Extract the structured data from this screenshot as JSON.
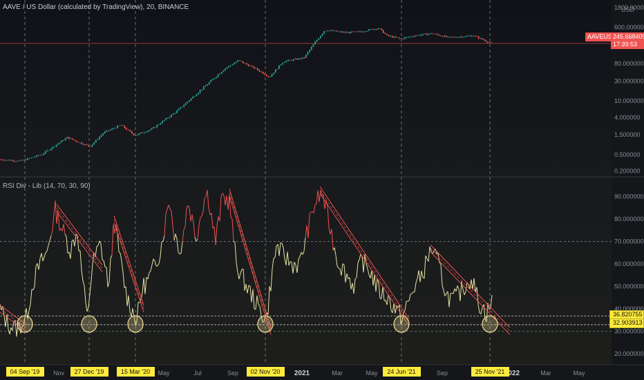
{
  "chart_title": "AAVE / US Dollar (calculated by TradingView), 20, BINANCE",
  "indicator_title": "RSI Div - Lib (14, 70, 30, 90)",
  "currency": "USD",
  "price_badge": {
    "symbol": "AAVEUSD",
    "value": "245.668409",
    "countdown": "17:39:53",
    "color": "#ef5350"
  },
  "colors": {
    "background": "#131722",
    "price_up": "#26a69a",
    "price_down": "#ef5350",
    "rsi_line": "#e8e4a5",
    "rsi_overbought": "#ef5350",
    "trendline": "#ef5350",
    "marker": "#f5e39b",
    "date_label_bg": "#ffeb3b"
  },
  "rsi_levels": {
    "upper": 70,
    "lower": 30,
    "overbought": 90,
    "support_1": 36.820755,
    "support_2": 32.903913
  },
  "rsi_badges": [
    "36.820755",
    "32.903913"
  ],
  "chart_data": [
    {
      "type": "candlestick",
      "y_scale": "log",
      "y_ticks": [
        "1800.000000",
        "600.000000",
        "200.000000",
        "80.000000",
        "30.000000",
        "10.000000",
        "4.000000",
        "1.500000",
        "0.500000",
        "0.200000"
      ],
      "y_tick_values": [
        1800,
        600,
        200,
        80,
        30,
        10,
        4,
        1.5,
        0.5,
        0.2
      ],
      "ylim": [
        0.15,
        2200
      ],
      "current_price": 245.668409,
      "approx_closes": [
        [
          0,
          0.38
        ],
        [
          30,
          0.35
        ],
        [
          60,
          0.5
        ],
        [
          97,
          1.3
        ],
        [
          130,
          0.78
        ],
        [
          150,
          1.7
        ],
        [
          175,
          2.6
        ],
        [
          195,
          1.45
        ],
        [
          220,
          2.1
        ],
        [
          255,
          5.5
        ],
        [
          290,
          18
        ],
        [
          325,
          60
        ],
        [
          345,
          95
        ],
        [
          370,
          60
        ],
        [
          390,
          38
        ],
        [
          410,
          90
        ],
        [
          440,
          110
        ],
        [
          455,
          250
        ],
        [
          470,
          520
        ],
        [
          500,
          450
        ],
        [
          520,
          470
        ],
        [
          548,
          580
        ],
        [
          560,
          380
        ],
        [
          580,
          320
        ],
        [
          600,
          380
        ],
        [
          625,
          430
        ],
        [
          650,
          340
        ],
        [
          685,
          380
        ],
        [
          712,
          245
        ]
      ]
    },
    {
      "type": "line",
      "name": "RSI Div - Lib",
      "ylim": [
        15,
        97
      ],
      "y_ticks": [
        "90.000000",
        "80.000000",
        "70.000000",
        "60.000000",
        "50.000000",
        "40.000000",
        "30.000000",
        "20.000000"
      ],
      "y_tick_values": [
        90,
        80,
        70,
        60,
        50,
        40,
        30,
        20
      ],
      "approx_points": [
        [
          0,
          40
        ],
        [
          12,
          33
        ],
        [
          25,
          31
        ],
        [
          38,
          36
        ],
        [
          48,
          52
        ],
        [
          58,
          60
        ],
        [
          68,
          65
        ],
        [
          80,
          84
        ],
        [
          92,
          74
        ],
        [
          102,
          66
        ],
        [
          112,
          75
        ],
        [
          120,
          52
        ],
        [
          126,
          36
        ],
        [
          134,
          60
        ],
        [
          145,
          69
        ],
        [
          158,
          50
        ],
        [
          165,
          80
        ],
        [
          173,
          64
        ],
        [
          183,
          46
        ],
        [
          193,
          38
        ],
        [
          198,
          35
        ],
        [
          206,
          49
        ],
        [
          218,
          55
        ],
        [
          232,
          66
        ],
        [
          240,
          80
        ],
        [
          245,
          90
        ],
        [
          252,
          74
        ],
        [
          262,
          66
        ],
        [
          272,
          88
        ],
        [
          284,
          72
        ],
        [
          293,
          86
        ],
        [
          300,
          93
        ],
        [
          312,
          70
        ],
        [
          322,
          90
        ],
        [
          332,
          88
        ],
        [
          342,
          60
        ],
        [
          357,
          50
        ],
        [
          368,
          44
        ],
        [
          378,
          38
        ],
        [
          386,
          36
        ],
        [
          392,
          52
        ],
        [
          400,
          68
        ],
        [
          410,
          64
        ],
        [
          422,
          60
        ],
        [
          434,
          60
        ],
        [
          446,
          76
        ],
        [
          456,
          87
        ],
        [
          466,
          92
        ],
        [
          475,
          80
        ],
        [
          488,
          62
        ],
        [
          500,
          56
        ],
        [
          513,
          50
        ],
        [
          523,
          62
        ],
        [
          537,
          56
        ],
        [
          548,
          48
        ],
        [
          560,
          45
        ],
        [
          572,
          40
        ],
        [
          582,
          36
        ],
        [
          590,
          42
        ],
        [
          600,
          50
        ],
        [
          612,
          56
        ],
        [
          624,
          67
        ],
        [
          635,
          60
        ],
        [
          646,
          46
        ],
        [
          656,
          44
        ],
        [
          668,
          48
        ],
        [
          682,
          54
        ],
        [
          694,
          42
        ],
        [
          704,
          38
        ],
        [
          712,
          43
        ]
      ]
    }
  ],
  "highlight_dates": [
    {
      "label": "04 Sep '19",
      "x": 36
    },
    {
      "label": "27 Dec '19",
      "x": 129
    },
    {
      "label": "15 Mar '20",
      "x": 196
    },
    {
      "label": "02 Nov '20",
      "x": 384
    },
    {
      "label": "24 Jun '21",
      "x": 581
    },
    {
      "label": "25 Nov '21",
      "x": 709
    }
  ],
  "month_ticks": [
    {
      "label": "Nov",
      "x": 85
    },
    {
      "label": "May",
      "x": 237
    },
    {
      "label": "Jul",
      "x": 286
    },
    {
      "label": "Sep",
      "x": 337
    },
    {
      "label": "2021",
      "x": 437,
      "bold": true
    },
    {
      "label": "Mar",
      "x": 488
    },
    {
      "label": "May",
      "x": 538
    },
    {
      "label": "Sep",
      "x": 640
    },
    {
      "label": "N",
      "x": 687
    },
    {
      "label": "2022",
      "x": 741,
      "bold": true
    },
    {
      "label": "Mar",
      "x": 790
    },
    {
      "label": "May",
      "x": 838
    }
  ],
  "trendlines": [
    {
      "from": [
        0,
        40
      ],
      "to": [
        40,
        31
      ]
    },
    {
      "from": [
        82,
        85
      ],
      "to": [
        148,
        58
      ]
    },
    {
      "from": [
        165,
        80
      ],
      "to": [
        208,
        40
      ]
    },
    {
      "from": [
        332,
        92
      ],
      "to": [
        392,
        30
      ]
    },
    {
      "from": [
        463,
        93
      ],
      "to": [
        592,
        34
      ]
    },
    {
      "from": [
        623,
        67
      ],
      "to": [
        738,
        30
      ]
    }
  ]
}
